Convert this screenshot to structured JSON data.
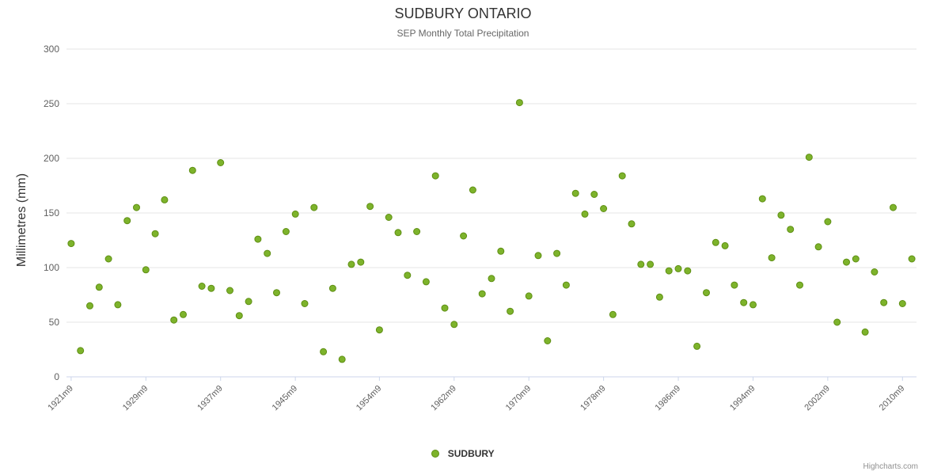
{
  "chart": {
    "title": "SUDBURY ONTARIO",
    "subtitle": "SEP Monthly Total Precipitation",
    "y_axis_title": "Millimetres (mm)",
    "legend_label": "SUDBURY",
    "credit": "Highcharts.com",
    "colors": {
      "point": "#7db32b",
      "point_stroke": "#5f8f14",
      "grid": "#e6e6e6",
      "axis_line": "#ccd6eb",
      "tick_text": "#606060",
      "title_text": "#333333",
      "subtitle_text": "#666666"
    }
  },
  "chart_data": {
    "type": "scatter",
    "title": "SUDBURY ONTARIO",
    "subtitle": "SEP Monthly Total Precipitation",
    "ylabel": "Millimetres (mm)",
    "series_name": "SUDBURY",
    "start_year": 1921,
    "x_suffix": "m9",
    "ylim": [
      0,
      300
    ],
    "y_ticks": [
      0,
      50,
      100,
      150,
      200,
      250,
      300
    ],
    "x_tick_labels": [
      "1921m9",
      "1929m9",
      "1937m9",
      "1945m9",
      "1954m9",
      "1962m9",
      "1970m9",
      "1978m9",
      "1986m9",
      "1994m9",
      "2002m9",
      "2010m9"
    ],
    "x_tick_indices": [
      0,
      8,
      16,
      24,
      33,
      41,
      49,
      57,
      65,
      73,
      81,
      89
    ],
    "grid": "horizontal-only",
    "legend_position": "bottom-center",
    "values": [
      122,
      24,
      65,
      82,
      108,
      66,
      143,
      155,
      98,
      131,
      162,
      52,
      57,
      189,
      83,
      81,
      196,
      79,
      56,
      69,
      126,
      113,
      77,
      133,
      149,
      67,
      155,
      23,
      81,
      16,
      103,
      105,
      156,
      43,
      146,
      132,
      93,
      133,
      87,
      184,
      63,
      48,
      129,
      171,
      76,
      90,
      115,
      60,
      251,
      74,
      111,
      33,
      113,
      84,
      168,
      149,
      167,
      154,
      57,
      184,
      140,
      103,
      103,
      73,
      97,
      99,
      97,
      28,
      77,
      123,
      120,
      84,
      68,
      66,
      163,
      109,
      148,
      135,
      84,
      201,
      119,
      142,
      50,
      105,
      108,
      41,
      96,
      68,
      155,
      67,
      108
    ]
  }
}
